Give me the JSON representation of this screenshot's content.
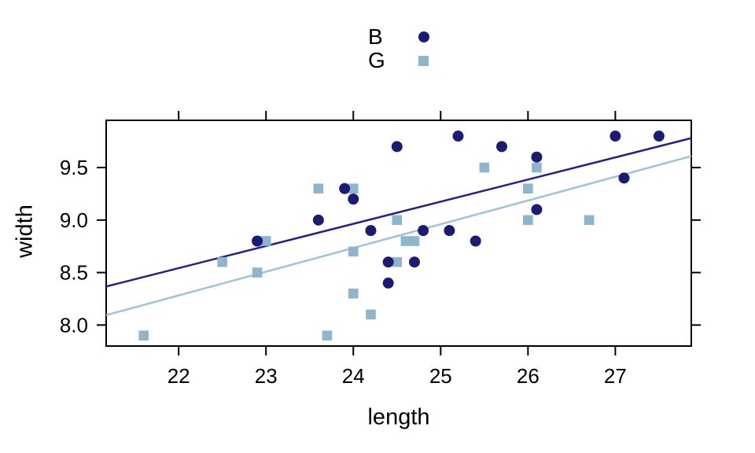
{
  "chart_data": {
    "type": "scatter",
    "xlabel": "length",
    "ylabel": "width",
    "xlim": [
      21.17,
      27.87
    ],
    "ylim": [
      7.8,
      9.95
    ],
    "grid": false,
    "legend_position": "top-center",
    "xticks": {
      "values": [
        22,
        23,
        24,
        25,
        26,
        27
      ],
      "labels": [
        "22",
        "23",
        "24",
        "25",
        "26",
        "27"
      ]
    },
    "yticks": {
      "values": [
        8.0,
        8.5,
        9.0,
        9.5
      ],
      "labels": [
        "8.0",
        "8.5",
        "9.0",
        "9.5"
      ]
    },
    "series": [
      {
        "name": "B",
        "marker": "circle",
        "marker_color": "#1c1b74",
        "line_color": "#251f8e",
        "fit_line": {
          "intercept": 3.9,
          "slope": 0.211
        },
        "points": [
          [
            22.9,
            8.8
          ],
          [
            23.6,
            9.0
          ],
          [
            23.9,
            9.3
          ],
          [
            24.0,
            9.2
          ],
          [
            24.2,
            8.9
          ],
          [
            24.4,
            8.4
          ],
          [
            24.4,
            8.6
          ],
          [
            24.5,
            9.7
          ],
          [
            24.7,
            8.6
          ],
          [
            24.8,
            8.9
          ],
          [
            25.1,
            8.9
          ],
          [
            25.2,
            9.8
          ],
          [
            25.4,
            8.8
          ],
          [
            25.7,
            9.7
          ],
          [
            26.1,
            9.1
          ],
          [
            26.1,
            9.6
          ],
          [
            27.0,
            9.8
          ],
          [
            27.1,
            9.4
          ],
          [
            27.5,
            9.8
          ]
        ]
      },
      {
        "name": "G",
        "marker": "square",
        "marker_color": "#8fb5cd",
        "line_color": "#9cc3d9",
        "fit_line": {
          "intercept": 3.31,
          "slope": 0.226
        },
        "points": [
          [
            21.6,
            7.9
          ],
          [
            22.5,
            8.6
          ],
          [
            22.9,
            8.5
          ],
          [
            23.0,
            8.8
          ],
          [
            23.6,
            9.3
          ],
          [
            23.7,
            7.9
          ],
          [
            24.0,
            8.3
          ],
          [
            24.0,
            8.7
          ],
          [
            24.0,
            9.3
          ],
          [
            24.2,
            8.1
          ],
          [
            24.5,
            8.6
          ],
          [
            24.5,
            9.0
          ],
          [
            24.6,
            8.8
          ],
          [
            24.7,
            8.8
          ],
          [
            25.5,
            9.5
          ],
          [
            26.0,
            9.0
          ],
          [
            26.0,
            9.3
          ],
          [
            26.1,
            9.5
          ],
          [
            26.7,
            9.0
          ]
        ]
      }
    ],
    "axis_color": "#000000",
    "background_color": "#ffffff"
  }
}
